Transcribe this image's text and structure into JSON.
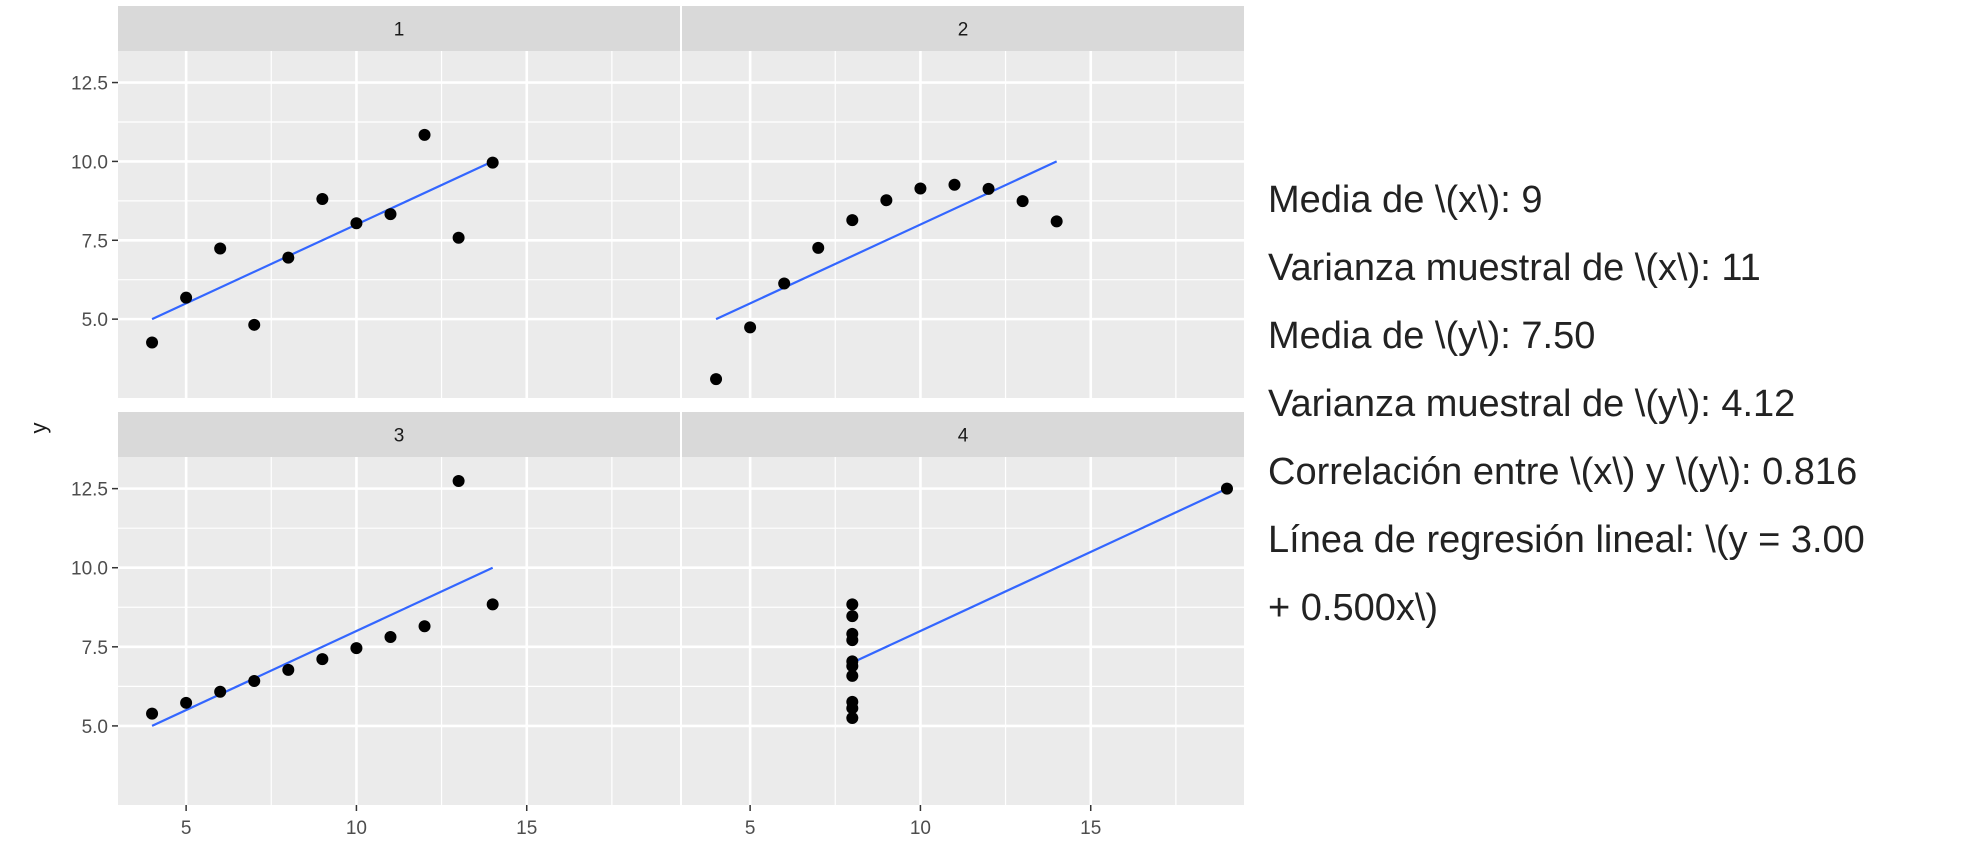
{
  "chart_data": {
    "type": "scatter",
    "facet_labels": [
      "1",
      "2",
      "3",
      "4"
    ],
    "ylabel": "y",
    "xlabel": "",
    "xlim": [
      3,
      19.5
    ],
    "ylim": [
      2.5,
      13.5
    ],
    "x_ticks": [
      5,
      10,
      15
    ],
    "y_ticks": [
      5.0,
      7.5,
      10.0,
      12.5
    ],
    "grid": true,
    "panels": [
      {
        "label": "1",
        "points": [
          [
            4,
            4.26
          ],
          [
            5,
            5.68
          ],
          [
            6,
            7.24
          ],
          [
            7,
            4.82
          ],
          [
            8,
            6.95
          ],
          [
            9,
            8.81
          ],
          [
            10,
            8.04
          ],
          [
            11,
            8.33
          ],
          [
            12,
            10.84
          ],
          [
            13,
            7.58
          ],
          [
            14,
            9.96
          ]
        ],
        "fit": {
          "intercept": 3.0,
          "slope": 0.5,
          "x_range": [
            4,
            14
          ]
        }
      },
      {
        "label": "2",
        "points": [
          [
            4,
            3.1
          ],
          [
            5,
            4.74
          ],
          [
            6,
            6.13
          ],
          [
            7,
            7.26
          ],
          [
            8,
            8.14
          ],
          [
            9,
            8.77
          ],
          [
            10,
            9.14
          ],
          [
            11,
            9.26
          ],
          [
            12,
            9.13
          ],
          [
            13,
            8.74
          ],
          [
            14,
            8.1
          ]
        ],
        "fit": {
          "intercept": 3.0,
          "slope": 0.5,
          "x_range": [
            4,
            14
          ]
        }
      },
      {
        "label": "3",
        "points": [
          [
            4,
            5.39
          ],
          [
            5,
            5.73
          ],
          [
            6,
            6.08
          ],
          [
            7,
            6.42
          ],
          [
            8,
            6.77
          ],
          [
            9,
            7.11
          ],
          [
            10,
            7.46
          ],
          [
            11,
            7.81
          ],
          [
            12,
            8.15
          ],
          [
            13,
            12.74
          ],
          [
            14,
            8.84
          ]
        ],
        "fit": {
          "intercept": 3.0,
          "slope": 0.5,
          "x_range": [
            4,
            14
          ]
        }
      },
      {
        "label": "4",
        "points": [
          [
            8,
            5.25
          ],
          [
            8,
            5.56
          ],
          [
            8,
            5.76
          ],
          [
            8,
            6.58
          ],
          [
            8,
            6.89
          ],
          [
            8,
            7.04
          ],
          [
            8,
            7.71
          ],
          [
            8,
            7.91
          ],
          [
            8,
            8.47
          ],
          [
            8,
            8.84
          ],
          [
            19,
            12.5
          ]
        ],
        "fit": {
          "intercept": 3.0,
          "slope": 0.5,
          "x_range": [
            8,
            19
          ]
        }
      }
    ],
    "colors": {
      "panel_bg": "#ebebeb",
      "strip_bg": "#d9d9d9",
      "grid": "#ffffff",
      "point": "#000000",
      "line": "#3366ff"
    }
  },
  "stats": {
    "mean_x": "Media de \\(x\\): 9",
    "var_x": "Varianza muestral de \\(x\\): 11",
    "mean_y": "Media de \\(y\\): 7.50",
    "var_y": "Varianza muestral de \\(y\\): 4.12",
    "correlation": "Correlación entre \\(x\\) y \\(y\\): 0.816",
    "regression_1": "Línea de regresión lineal: \\(y = 3.00",
    "regression_2": "+ 0.500x\\)"
  }
}
